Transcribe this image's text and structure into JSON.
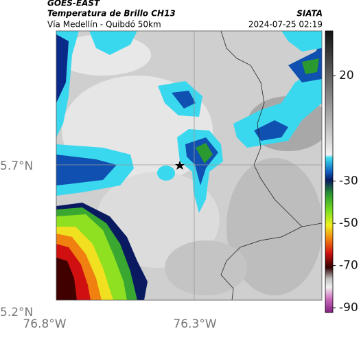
{
  "header": {
    "source": "GOES-EAST",
    "title": "Temperatura de Brillo CH13",
    "route": "Vía Medellín - Quibdó 50km",
    "brand": "SIATA",
    "timestamp": "2024-07-25 02:19"
  },
  "axes": {
    "lat_labels": [
      "5.7°N",
      "5.2°N"
    ],
    "lon_labels": [
      "76.8°W",
      "76.3°W"
    ]
  },
  "colorbar": {
    "ticks": [
      20,
      -30,
      -50,
      -70,
      -90
    ]
  }
}
